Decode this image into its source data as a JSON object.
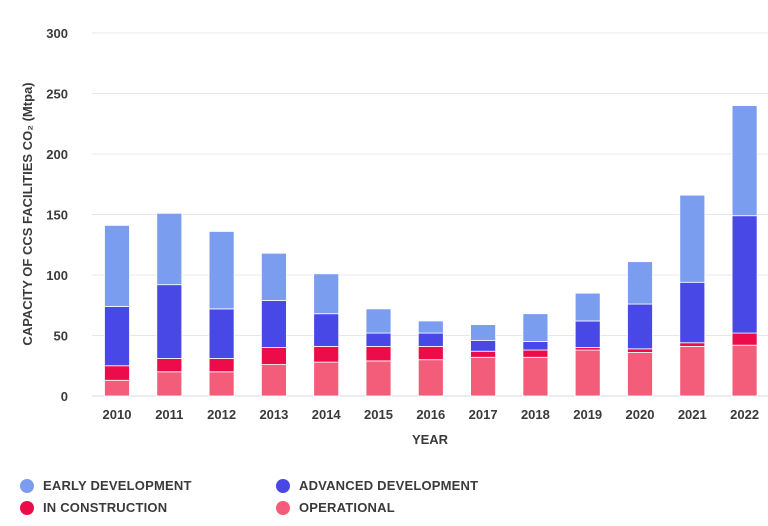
{
  "chart_data": {
    "type": "bar",
    "stacked": true,
    "xlabel": "YEAR",
    "ylabel": "CAPACITY OF CCS FACILITIES CO₂ (Mtpa)",
    "ylim": [
      0,
      300
    ],
    "yticks": [
      "0",
      "50",
      "100",
      "150",
      "200",
      "250",
      "300"
    ],
    "grid": true,
    "legend_position": "bottom",
    "categories": [
      "2010",
      "2011",
      "2012",
      "2013",
      "2014",
      "2015",
      "2016",
      "2017",
      "2018",
      "2019",
      "2020",
      "2021",
      "2022"
    ],
    "series": [
      {
        "name": "OPERATIONAL",
        "color": "#f45d7a",
        "values": [
          13,
          20,
          20,
          26,
          28,
          29,
          30,
          32,
          32,
          38,
          36,
          41,
          42
        ]
      },
      {
        "name": "IN CONSTRUCTION",
        "color": "#ec0c4a",
        "values": [
          12,
          11,
          11,
          14,
          13,
          12,
          11,
          5,
          6,
          2,
          3,
          3,
          10
        ]
      },
      {
        "name": "ADVANCED DEVELOPMENT",
        "color": "#4848e6",
        "values": [
          49,
          61,
          41,
          39,
          27,
          11,
          11,
          9,
          7,
          22,
          37,
          50,
          97
        ]
      },
      {
        "name": "EARLY DEVELOPMENT",
        "color": "#7b9df0",
        "values": [
          67,
          59,
          64,
          39,
          33,
          20,
          10,
          13,
          23,
          23,
          35,
          72,
          91
        ]
      }
    ],
    "legend": [
      {
        "label": "EARLY DEVELOPMENT",
        "color": "#7b9df0"
      },
      {
        "label": "ADVANCED DEVELOPMENT",
        "color": "#4848e6"
      },
      {
        "label": "IN CONSTRUCTION",
        "color": "#ec0c4a"
      },
      {
        "label": "OPERATIONAL",
        "color": "#f45d7a"
      }
    ]
  }
}
